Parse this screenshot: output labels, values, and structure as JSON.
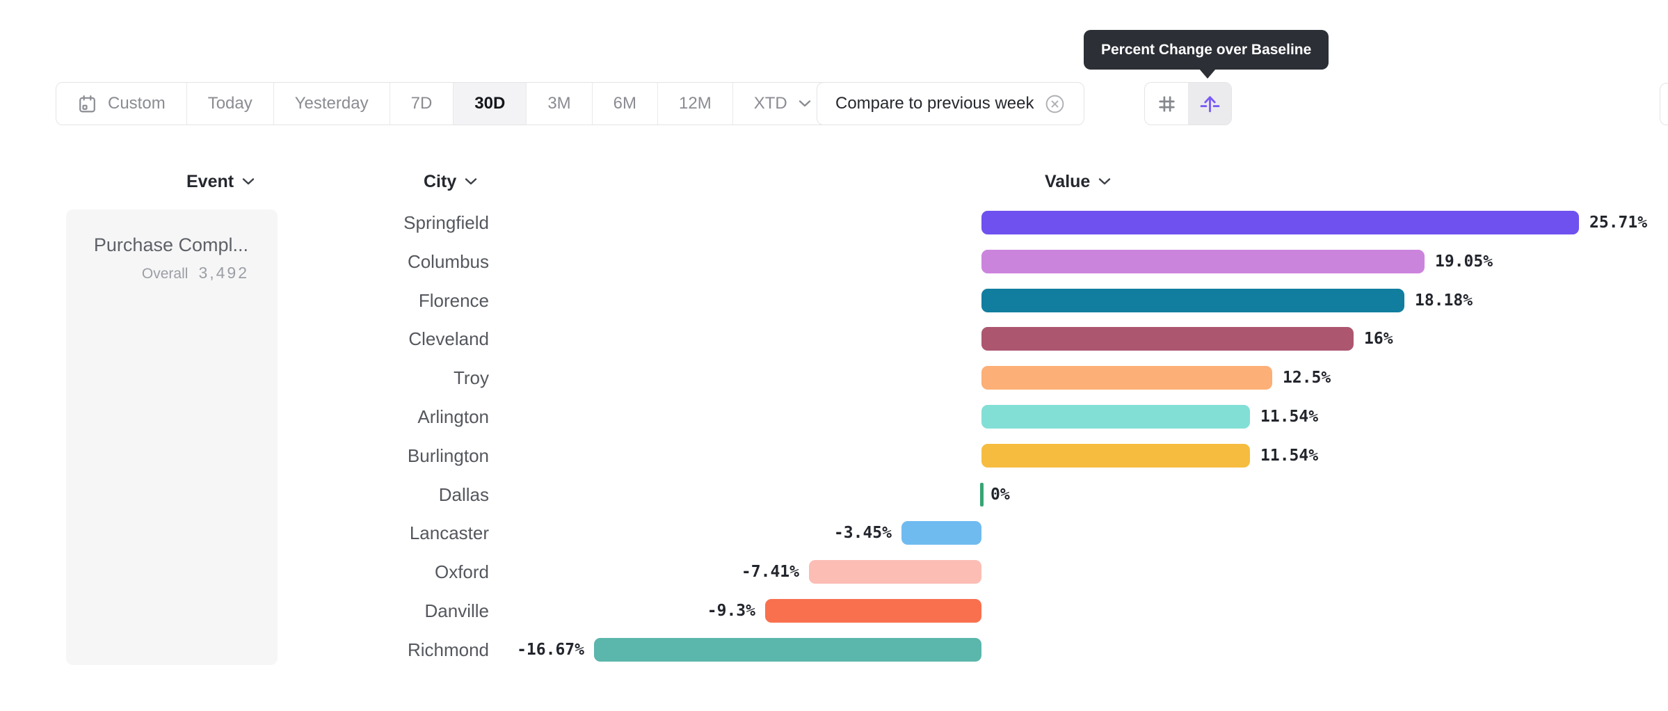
{
  "tooltip": {
    "text": "Percent Change over Baseline"
  },
  "toolbar": {
    "date_ranges": [
      {
        "label": "Custom",
        "icon": "calendar-icon"
      },
      {
        "label": "Today"
      },
      {
        "label": "Yesterday"
      },
      {
        "label": "7D"
      },
      {
        "label": "30D"
      },
      {
        "label": "3M"
      },
      {
        "label": "6M"
      },
      {
        "label": "12M"
      },
      {
        "label": "XTD",
        "dropdown": true
      }
    ],
    "selected_range": "30D",
    "compare_chip": {
      "label": "Compare to previous week",
      "icon": "close-circle-icon"
    },
    "view_toggles": [
      {
        "name": "absolute-numbers",
        "icon": "hash-icon",
        "selected": false
      },
      {
        "name": "percent-change-over-baseline",
        "icon": "arrow-up-baseline-icon",
        "selected": true
      }
    ]
  },
  "columns": {
    "event": "Event",
    "city": "City",
    "value": "Value"
  },
  "event_panel": {
    "event_name": "Purchase Compl...",
    "overall_label": "Overall",
    "overall_value": "3,492"
  },
  "colors": {
    "accent_purple": "#7a5af8",
    "zero_tick_green": "#36a573",
    "tooltip_bg": "#2c2f36",
    "selected_segment_bg": "#f3f3f5"
  },
  "chart_data": {
    "type": "bar",
    "orientation": "horizontal",
    "group_by": "City",
    "unit": "%",
    "baseline": 0,
    "xlim": [
      -16.67,
      25.71
    ],
    "series": [
      {
        "city": "Springfield",
        "value": 25.71,
        "label": "25.71%",
        "color": "#6f51ef"
      },
      {
        "city": "Columbus",
        "value": 19.05,
        "label": "19.05%",
        "color": "#cb84dc"
      },
      {
        "city": "Florence",
        "value": 18.18,
        "label": "18.18%",
        "color": "#117e9f"
      },
      {
        "city": "Cleveland",
        "value": 16,
        "label": "16%",
        "color": "#ad5670"
      },
      {
        "city": "Troy",
        "value": 12.5,
        "label": "12.5%",
        "color": "#fcaf76"
      },
      {
        "city": "Arlington",
        "value": 11.54,
        "label": "11.54%",
        "color": "#82dfd5"
      },
      {
        "city": "Burlington",
        "value": 11.54,
        "label": "11.54%",
        "color": "#f6bc3f"
      },
      {
        "city": "Dallas",
        "value": 0,
        "label": "0%",
        "color": "#36a573"
      },
      {
        "city": "Lancaster",
        "value": -3.45,
        "label": "-3.45%",
        "color": "#6fbbf0"
      },
      {
        "city": "Oxford",
        "value": -7.41,
        "label": "-7.41%",
        "color": "#fcbdb5"
      },
      {
        "city": "Danville",
        "value": -9.3,
        "label": "-9.3%",
        "color": "#f9704f"
      },
      {
        "city": "Richmond",
        "value": -16.67,
        "label": "-16.67%",
        "color": "#5bb6ab"
      }
    ]
  }
}
